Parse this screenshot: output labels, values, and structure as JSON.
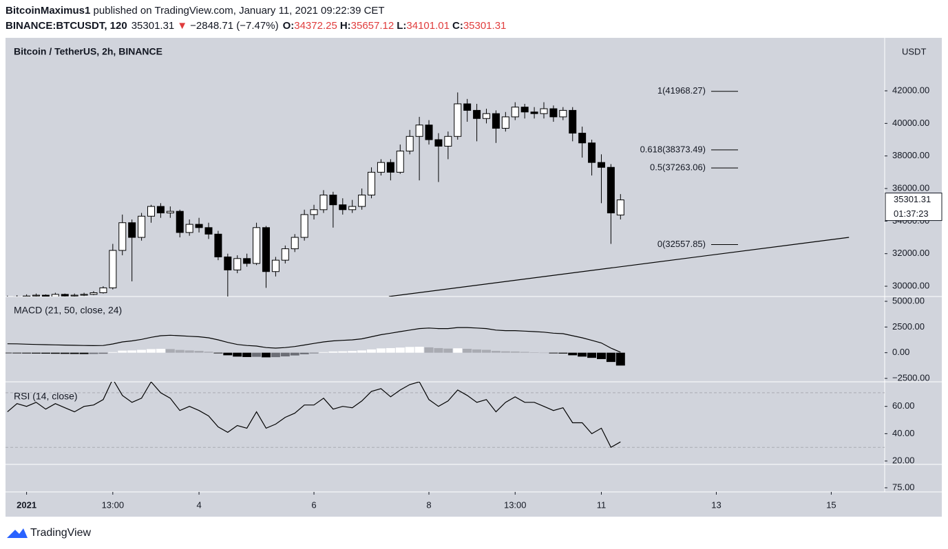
{
  "header": {
    "author": "BitcoinMaximus1",
    "published": " published on TradingView.com, January 11, 2021 09:22:39 CET",
    "symbol": "BINANCE:BTCUSDT, 120",
    "last": "35301.31",
    "arrow": "▼",
    "change": "−2848.71 (−7.47%)",
    "open_label": "O:",
    "open": "34372.25",
    "high_label": "H:",
    "high": "35657.12",
    "low_label": "L:",
    "low": "34101.01",
    "close_label": "C:",
    "close": "35301.31"
  },
  "chart_data": [
    {
      "type": "candlestick",
      "title": "Bitcoin / TetherUS, 2h, BINANCE",
      "axis_label": "USDT",
      "x": [
        -8,
        -4,
        0,
        4,
        8,
        12,
        16,
        20,
        24,
        28,
        32,
        36,
        40,
        44,
        48,
        52,
        56,
        60,
        64,
        68,
        72,
        76,
        80,
        84,
        88,
        92,
        96,
        100,
        104,
        108,
        112,
        116,
        120,
        124,
        128,
        132,
        136,
        140,
        144,
        148,
        152,
        156,
        160,
        164,
        168,
        172,
        176,
        180,
        184,
        188,
        192,
        196,
        200,
        204,
        208,
        212,
        216,
        220,
        224,
        228,
        232,
        236,
        240,
        244,
        248
      ],
      "open": [
        29250,
        29300,
        29350,
        29400,
        29450,
        29350,
        29500,
        29400,
        29450,
        29500,
        29600,
        29900,
        32200,
        33900,
        33000,
        34300,
        34900,
        34500,
        34600,
        33300,
        33800,
        33600,
        33200,
        31800,
        31000,
        31700,
        31400,
        33600,
        30900,
        31600,
        32300,
        33000,
        34400,
        34700,
        35600,
        35000,
        34700,
        34900,
        35600,
        37000,
        37600,
        37000,
        38300,
        39200,
        39900,
        39000,
        38600,
        39200,
        41200,
        40800,
        40300,
        40600,
        39700,
        40400,
        41000,
        40700,
        40600,
        40900,
        40400,
        40800,
        39400,
        38800,
        37600,
        37300,
        34372.25
      ],
      "high": [
        29420,
        29450,
        29500,
        29550,
        29500,
        29600,
        29550,
        29550,
        29600,
        29700,
        30000,
        32600,
        34400,
        34100,
        34500,
        35000,
        35100,
        34900,
        34700,
        34100,
        34200,
        33900,
        33400,
        32000,
        31900,
        32000,
        33900,
        33700,
        31800,
        32500,
        33200,
        34700,
        35000,
        35900,
        35800,
        35400,
        35300,
        36000,
        37300,
        37800,
        37800,
        38700,
        39600,
        40400,
        40200,
        39400,
        39500,
        41900,
        41500,
        41200,
        40900,
        40800,
        40700,
        41300,
        41200,
        41000,
        41300,
        41100,
        41000,
        41000,
        39800,
        39000,
        38100,
        37500,
        35657.12
      ],
      "low": [
        29200,
        29250,
        29300,
        29300,
        29250,
        29300,
        29300,
        29350,
        29400,
        29450,
        29550,
        29800,
        31900,
        30300,
        32800,
        33900,
        34200,
        34200,
        33000,
        33100,
        33300,
        32900,
        31600,
        29300,
        30800,
        31200,
        31300,
        29900,
        30600,
        31400,
        32100,
        32800,
        34100,
        34500,
        33600,
        34400,
        34500,
        34700,
        35400,
        36800,
        36500,
        36900,
        38100,
        36500,
        38700,
        36400,
        37800,
        39000,
        40100,
        38900,
        40000,
        38800,
        39500,
        40200,
        40300,
        40300,
        40300,
        40100,
        40200,
        38900,
        37900,
        36800,
        35100,
        32600,
        34101.01
      ],
      "close": [
        29300,
        29350,
        29400,
        29450,
        29350,
        29500,
        29400,
        29450,
        29500,
        29600,
        29900,
        32200,
        33900,
        33000,
        34300,
        34900,
        34500,
        34600,
        33300,
        33800,
        33600,
        33200,
        31800,
        31000,
        31700,
        31400,
        33600,
        30900,
        31600,
        32300,
        33000,
        34400,
        34700,
        35600,
        35000,
        34700,
        34900,
        35600,
        37000,
        37600,
        37000,
        38300,
        39200,
        39900,
        39000,
        38600,
        39200,
        41200,
        40800,
        40300,
        40600,
        39700,
        40400,
        41000,
        40700,
        40600,
        40900,
        40400,
        40800,
        39400,
        38800,
        37600,
        37300,
        34500,
        35301.31
      ],
      "up_color": "#ffffff",
      "down_color": "#000000",
      "xlim": [
        -8.8,
        358.3
      ],
      "ylim": [
        29368,
        45169
      ],
      "yticks": [
        {
          "value": 30000,
          "label": "30000.00"
        },
        {
          "value": 32000,
          "label": "32000.00"
        },
        {
          "value": 34000,
          "label": "34000.00"
        },
        {
          "value": 36000,
          "label": "36000.00"
        },
        {
          "value": 38000,
          "label": "38000.00"
        },
        {
          "value": 40000,
          "label": "40000.00"
        },
        {
          "value": 42000,
          "label": "42000.00"
        }
      ],
      "xticks": [
        {
          "value": 0,
          "label": "2021"
        },
        {
          "value": 36,
          "label": "13:00"
        },
        {
          "value": 72,
          "label": "4"
        },
        {
          "value": 120,
          "label": "6"
        },
        {
          "value": 168,
          "label": "8"
        },
        {
          "value": 204,
          "label": "13:00"
        },
        {
          "value": 240,
          "label": "11"
        },
        {
          "value": 288,
          "label": "13"
        },
        {
          "value": 336,
          "label": "15"
        }
      ],
      "fib_levels": [
        {
          "value": 41968.27,
          "label": "1(41968.27)"
        },
        {
          "value": 38373.49,
          "label": "0.618(38373.49)"
        },
        {
          "value": 37263.06,
          "label": "0.5(37263.06)"
        },
        {
          "value": 32557.85,
          "label": "0(32557.85)"
        }
      ],
      "trendline": {
        "x": [
          151.3,
          343.4
        ],
        "y": [
          29368,
          33000
        ]
      },
      "last_price": {
        "value": 35301.31,
        "label": "35301.31"
      },
      "countdown": "01:37:23"
    },
    {
      "type": "macd",
      "title": "MACD (21, 50, close, 24)",
      "macd": [
        870,
        860,
        830,
        800,
        780,
        760,
        740,
        720,
        700,
        690,
        700,
        850,
        1050,
        1150,
        1300,
        1500,
        1650,
        1700,
        1650,
        1600,
        1550,
        1450,
        1250,
        1000,
        800,
        700,
        650,
        500,
        450,
        500,
        600,
        750,
        900,
        1050,
        1150,
        1200,
        1250,
        1350,
        1550,
        1750,
        1900,
        2050,
        2200,
        2350,
        2400,
        2350,
        2350,
        2450,
        2450,
        2400,
        2350,
        2200,
        2150,
        2150,
        2100,
        2050,
        2000,
        1900,
        1850,
        1650,
        1450,
        1200,
        950,
        450,
        50
      ],
      "histogram": [
        -50,
        -60,
        -70,
        -80,
        -90,
        -100,
        -110,
        -120,
        -130,
        -120,
        -100,
        60,
        200,
        220,
        280,
        350,
        380,
        350,
        270,
        220,
        180,
        100,
        -60,
        -250,
        -380,
        -420,
        -400,
        -450,
        -430,
        -360,
        -270,
        -150,
        -60,
        60,
        120,
        140,
        170,
        220,
        320,
        420,
        450,
        500,
        560,
        580,
        520,
        450,
        400,
        430,
        380,
        320,
        280,
        180,
        140,
        120,
        80,
        40,
        0,
        -60,
        -80,
        -250,
        -380,
        -500,
        -620,
        -900,
        -1250
      ],
      "line_color": "#000000",
      "hist_colors": {
        "pos_up": "#ffffff",
        "pos_down": "#a9abb2",
        "neg_down": "#000000",
        "neg_up": "#6c6e76"
      },
      "ylim": [
        -2833,
        5467
      ],
      "yticks": [
        {
          "value": 5000,
          "label": "5000.00"
        },
        {
          "value": 2500,
          "label": "2500.00"
        },
        {
          "value": 0,
          "label": "0.00"
        },
        {
          "value": -2500,
          "label": "−2500.00"
        }
      ]
    },
    {
      "type": "rsi",
      "title": "RSI (14, close)",
      "values": [
        56,
        62,
        60,
        63,
        58,
        62,
        59,
        56,
        60,
        61,
        65,
        80,
        68,
        63,
        66,
        78,
        70,
        66,
        57,
        60,
        57,
        53,
        45,
        41,
        46,
        44,
        56,
        44,
        47,
        52,
        55,
        61,
        61,
        66,
        58,
        60,
        59,
        64,
        71,
        73,
        67,
        72,
        76,
        78,
        65,
        60,
        64,
        72,
        68,
        63,
        65,
        56,
        63,
        67,
        63,
        63,
        60,
        57,
        59,
        48,
        48,
        40,
        44,
        30,
        34
      ],
      "line_color": "#000000",
      "bands": [
        70,
        30
      ],
      "ylim": [
        17.5,
        78
      ],
      "yticks": [
        {
          "value": 60,
          "label": "60.00"
        },
        {
          "value": 40,
          "label": "40.00"
        },
        {
          "value": 20,
          "label": "20.00"
        }
      ]
    },
    {
      "type": "pane",
      "yticks": [
        {
          "value": 75,
          "label": "75.00"
        }
      ]
    }
  ],
  "footer": {
    "brand": "TradingView"
  }
}
